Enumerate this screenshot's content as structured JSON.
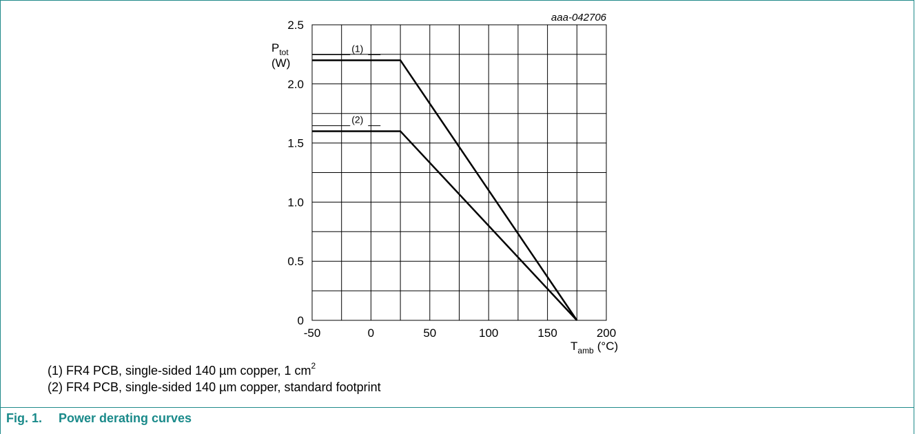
{
  "figure_id": "aaa-042706",
  "chart_data": {
    "type": "line",
    "y_label": "P",
    "y_label_sub": "tot",
    "y_unit": "(W)",
    "x_label": "T",
    "x_label_sub": "amb",
    "x_unit": "(°C)",
    "xlim": [
      -50,
      200
    ],
    "ylim": [
      0,
      2.5
    ],
    "x_ticks": [
      "-50",
      "0",
      "50",
      "100",
      "150",
      "200"
    ],
    "y_ticks": [
      "0",
      "0.5",
      "1.0",
      "1.5",
      "2.0",
      "2.5"
    ],
    "grid": true,
    "series": [
      {
        "label": "(1)",
        "x": [
          -50,
          25,
          175
        ],
        "y": [
          2.2,
          2.2,
          0
        ]
      },
      {
        "label": "(2)",
        "x": [
          -50,
          25,
          175
        ],
        "y": [
          1.6,
          1.6,
          0
        ]
      }
    ]
  },
  "notes": {
    "note1_text": "(1) FR4 PCB, single-sided 140 µm copper, 1 cm",
    "note1_sup": "2",
    "note2_text": "(2) FR4 PCB, single-sided 140 µm copper, standard footprint"
  },
  "caption": {
    "number": "Fig. 1.",
    "title": "Power derating curves"
  }
}
